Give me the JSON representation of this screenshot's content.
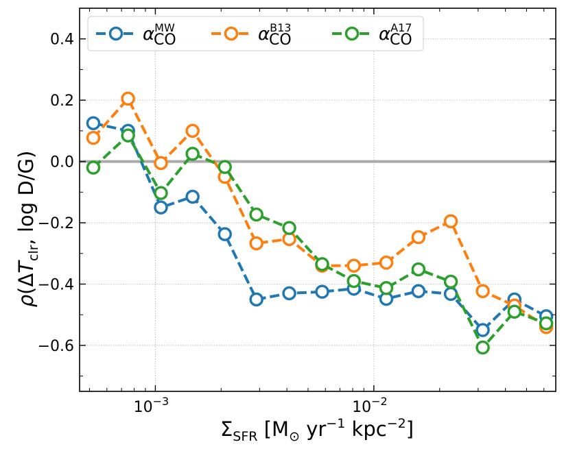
{
  "chart_data": {
    "type": "line",
    "xscale": "log",
    "xlim": [
      0.00045,
      0.068
    ],
    "ylim": [
      -0.75,
      0.5
    ],
    "grid": true,
    "reference_line_y": 0.0,
    "ylabel": "ρ(ΔT_clr, log D/G)",
    "xlabel": "Σ_SFR [M_⊙ yr^−1 kpc^−2]",
    "yticks": [
      0.4,
      0.2,
      0.0,
      -0.2,
      -0.4,
      -0.6
    ],
    "ytick_labels": [
      "0.4",
      "0.2",
      "0.0",
      "−0.2",
      "−0.4",
      "−0.6"
    ],
    "xticks": [
      0.001,
      0.01
    ],
    "xtick_labels": [
      "10",
      "10"
    ],
    "xtick_exponents": [
      "−3",
      "−2"
    ],
    "legend_position": "top-left",
    "x": [
      0.00052,
      0.00075,
      0.00106,
      0.00148,
      0.00208,
      0.0029,
      0.0041,
      0.0058,
      0.0081,
      0.0114,
      0.016,
      0.0225,
      0.0315,
      0.044,
      0.0615
    ],
    "series": [
      {
        "name": "α_CO^MW",
        "symbol": "α",
        "sub": "CO",
        "sup": "MW",
        "color": "#1f77b4",
        "values": [
          0.125,
          0.1,
          -0.15,
          -0.115,
          -0.237,
          -0.45,
          -0.43,
          -0.425,
          -0.415,
          -0.448,
          -0.423,
          -0.432,
          -0.55,
          -0.45,
          -0.505
        ]
      },
      {
        "name": "α_CO^B13",
        "symbol": "α",
        "sub": "CO",
        "sup": "B13",
        "color": "#ff7f0e",
        "values": [
          0.077,
          0.205,
          -0.005,
          0.1,
          -0.05,
          -0.267,
          -0.253,
          -0.34,
          -0.34,
          -0.33,
          -0.247,
          -0.195,
          -0.423,
          -0.47,
          -0.54
        ]
      },
      {
        "name": "α_CO^A17",
        "symbol": "α",
        "sub": "CO",
        "sup": "A17",
        "color": "#2ca02c",
        "values": [
          -0.02,
          0.085,
          -0.103,
          0.025,
          -0.018,
          -0.173,
          -0.217,
          -0.335,
          -0.39,
          -0.413,
          -0.352,
          -0.392,
          -0.607,
          -0.49,
          -0.528
        ]
      }
    ]
  },
  "axis": {
    "y_rho": "ρ",
    "y_open": "(Δ",
    "y_T": "T",
    "y_sub": "clr",
    "y_rest": ",  log D/G)",
    "x_sigma": "Σ",
    "x_sub": "SFR",
    "x_open": "[M",
    "x_sun": "⊙",
    "x_yr": " yr",
    "x_yr_exp": "−1",
    "x_kpc": " kpc",
    "x_kpc_exp": "−2",
    "x_close": "]"
  }
}
